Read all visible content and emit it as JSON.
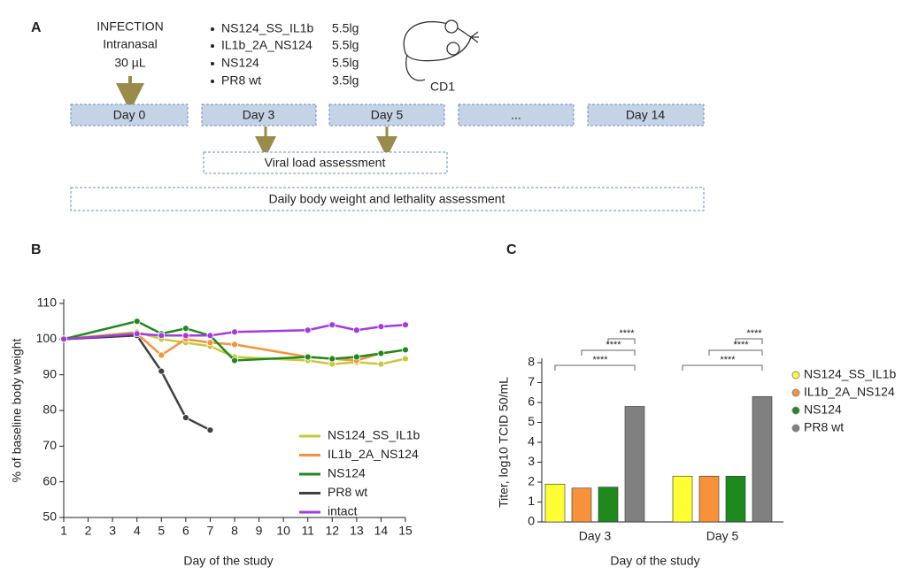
{
  "diagram": {
    "label": "A",
    "infection": [
      "INFECTION",
      "Intranasal",
      "30 µL"
    ],
    "strains": [
      {
        "name": "NS124_SS_IL1b",
        "dose": "5.5lg"
      },
      {
        "name": "IL1b_2A_NS124",
        "dose": "5.5lg"
      },
      {
        "name": "NS124",
        "dose": "5.5lg"
      },
      {
        "name": "PR8 wt",
        "dose": "3.5lg"
      }
    ],
    "animal": "CD1",
    "days": [
      "Day 0",
      "Day 3",
      "Day 5",
      "...",
      "Day 14"
    ],
    "viral_load": "Viral load assessment",
    "daily": "Daily body weight and lethality assessment"
  },
  "chart_data": [
    {
      "type": "line",
      "panel": "B",
      "x_label": "Day of the study",
      "y_label": "% of baseline body weight",
      "x": [
        1,
        4,
        5,
        6,
        7,
        8,
        11,
        12,
        13,
        14,
        15
      ],
      "xlim": [
        1,
        15
      ],
      "xticks": [
        1,
        2,
        3,
        4,
        5,
        6,
        7,
        8,
        9,
        10,
        11,
        12,
        13,
        14,
        15
      ],
      "ylim": [
        50,
        110
      ],
      "yticks": [
        50,
        60,
        70,
        80,
        90,
        100,
        110
      ],
      "series": [
        {
          "name": "NS124_SS_IL1b",
          "color": "#c9c83a",
          "values": [
            100,
            102,
            100,
            99,
            98,
            95,
            94,
            93,
            93.5,
            93,
            94.5
          ]
        },
        {
          "name": "IL1b_2A_NS124",
          "color": "#f7923a",
          "values": [
            100,
            101.5,
            95.5,
            100,
            99,
            98.5,
            95,
            94.5,
            94,
            96,
            97
          ]
        },
        {
          "name": "NS124",
          "color": "#1e8a1e",
          "values": [
            100,
            105,
            101.5,
            103,
            101,
            94,
            95,
            94.5,
            95,
            96,
            97
          ]
        },
        {
          "name": "PR8 wt",
          "color": "#404040",
          "values": [
            100,
            101,
            91,
            78,
            74.5,
            null,
            null,
            null,
            null,
            null,
            null
          ]
        },
        {
          "name": "intact",
          "color": "#a43be0",
          "values": [
            100,
            101.5,
            101,
            101,
            101,
            102,
            102.5,
            104,
            102.5,
            103.5,
            104
          ]
        }
      ]
    },
    {
      "type": "bar",
      "panel": "C",
      "x_label": "Day of the study",
      "y_label": "Titer, log10 TCID 50/mL",
      "categories": [
        "Day 3",
        "Day 5"
      ],
      "ylim": [
        0,
        8
      ],
      "yticks": [
        0,
        1,
        2,
        3,
        4,
        5,
        6,
        7,
        8
      ],
      "annotations": [
        "****",
        "****",
        "****",
        "****",
        "****",
        "****"
      ],
      "series": [
        {
          "name": "NS124_SS_IL1b",
          "color": "#ffff33",
          "values": [
            1.9,
            2.3
          ]
        },
        {
          "name": "IL1b_2A_NS124",
          "color": "#f7923a",
          "values": [
            1.7,
            2.3
          ]
        },
        {
          "name": "NS124",
          "color": "#1e8a1e",
          "values": [
            1.75,
            2.3
          ]
        },
        {
          "name": "PR8 wt",
          "color": "#808080",
          "values": [
            5.8,
            6.3
          ]
        }
      ]
    }
  ]
}
